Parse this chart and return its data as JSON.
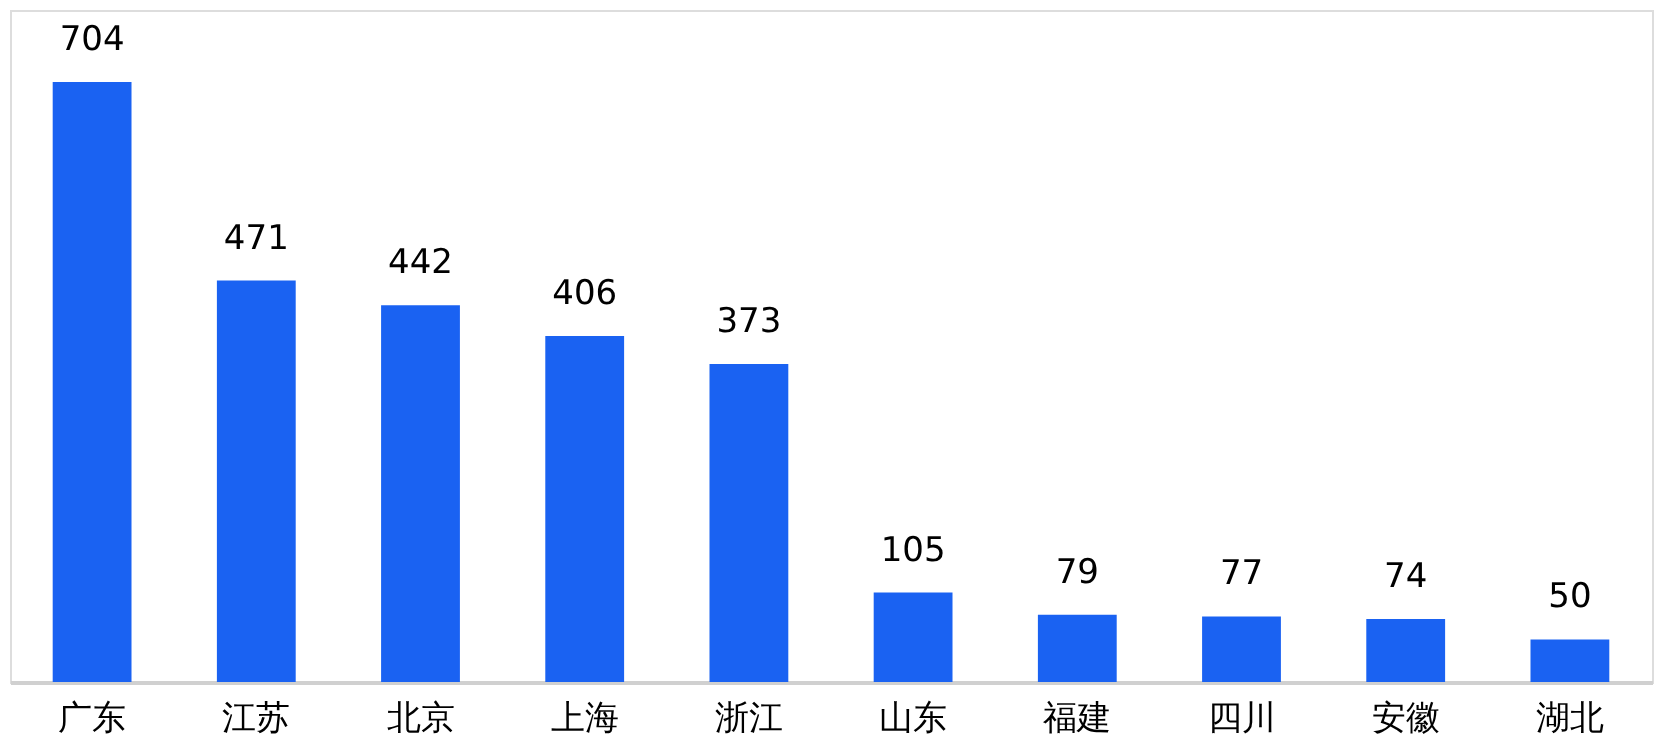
{
  "chart_data": {
    "type": "bar",
    "categories": [
      "广东",
      "江苏",
      "北京",
      "上海",
      "浙江",
      "山东",
      "福建",
      "四川",
      "安徽",
      "湖北"
    ],
    "values": [
      704,
      471,
      442,
      406,
      373,
      105,
      79,
      77,
      74,
      50
    ],
    "color": "#1a62f2",
    "data_labels": true
  }
}
